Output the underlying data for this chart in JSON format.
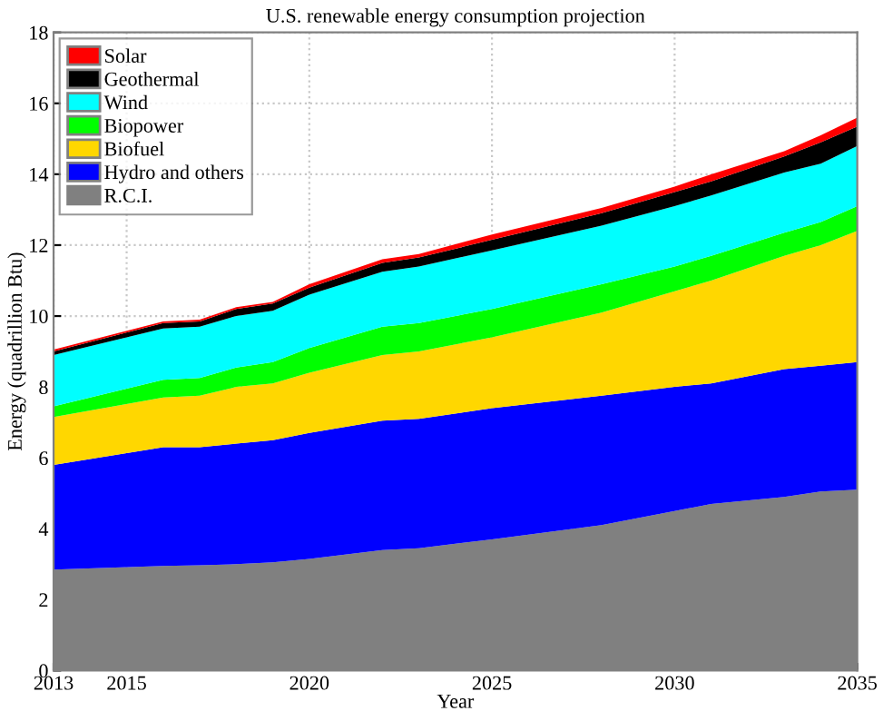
{
  "chart_data": {
    "type": "area",
    "stacked": true,
    "title": "U.S. renewable energy consumption projection",
    "xlabel": "Year",
    "ylabel": "Energy (quadrillion Btu)",
    "x": [
      2013,
      2016,
      2017,
      2018,
      2019,
      2020,
      2022,
      2023,
      2025,
      2028,
      2030,
      2031,
      2033,
      2034,
      2035
    ],
    "series": [
      {
        "name": "R.C.I.",
        "color": "#808080",
        "values": [
          2.85,
          2.95,
          2.97,
          3.0,
          3.05,
          3.15,
          3.4,
          3.45,
          3.7,
          4.1,
          4.5,
          4.7,
          4.9,
          5.05,
          5.1
        ]
      },
      {
        "name": "Hydro and others",
        "color": "#0000ff",
        "values": [
          2.95,
          3.35,
          3.33,
          3.4,
          3.45,
          3.55,
          3.65,
          3.65,
          3.7,
          3.65,
          3.5,
          3.4,
          3.6,
          3.55,
          3.6
        ]
      },
      {
        "name": "Biofuel",
        "color": "#ffd700",
        "values": [
          1.35,
          1.4,
          1.45,
          1.6,
          1.6,
          1.7,
          1.85,
          1.9,
          2.0,
          2.35,
          2.7,
          2.9,
          3.2,
          3.4,
          3.7
        ]
      },
      {
        "name": "Biopower",
        "color": "#00ff00",
        "values": [
          0.3,
          0.5,
          0.5,
          0.55,
          0.6,
          0.7,
          0.8,
          0.8,
          0.8,
          0.8,
          0.7,
          0.7,
          0.65,
          0.65,
          0.7
        ]
      },
      {
        "name": "Wind",
        "color": "#00ffff",
        "values": [
          1.45,
          1.45,
          1.45,
          1.45,
          1.45,
          1.5,
          1.55,
          1.6,
          1.65,
          1.65,
          1.7,
          1.7,
          1.7,
          1.65,
          1.7
        ]
      },
      {
        "name": "Geothermal",
        "color": "#000000",
        "values": [
          0.1,
          0.15,
          0.15,
          0.2,
          0.2,
          0.2,
          0.25,
          0.25,
          0.3,
          0.35,
          0.4,
          0.4,
          0.45,
          0.6,
          0.55
        ]
      },
      {
        "name": "Solar",
        "color": "#ff0000",
        "values": [
          0.05,
          0.05,
          0.05,
          0.05,
          0.05,
          0.1,
          0.1,
          0.1,
          0.15,
          0.15,
          0.15,
          0.2,
          0.15,
          0.2,
          0.25
        ]
      }
    ],
    "xlim": [
      2013,
      2035
    ],
    "xticks": [
      2013,
      2015,
      2020,
      2025,
      2030,
      2035
    ],
    "ylim": [
      0,
      18
    ],
    "yticks": [
      0,
      2,
      4,
      6,
      8,
      10,
      12,
      14,
      16,
      18
    ],
    "grid": true,
    "legend": "top left"
  }
}
